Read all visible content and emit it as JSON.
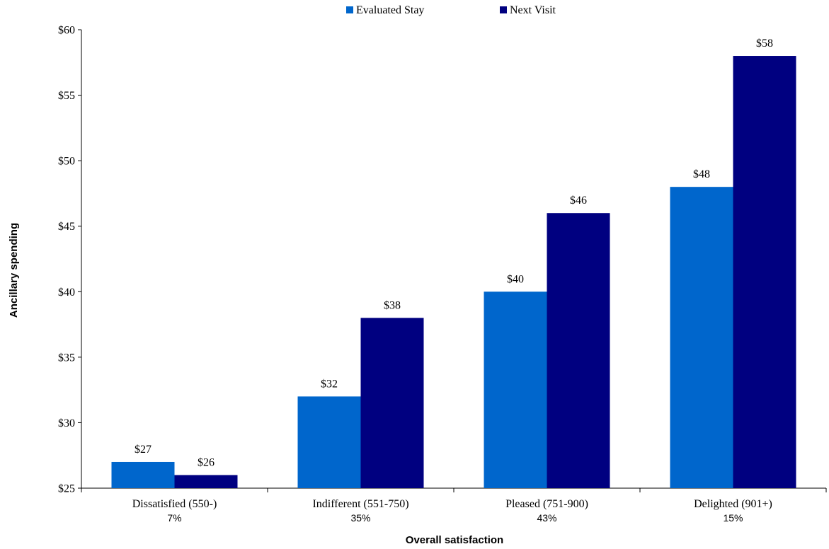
{
  "colors": {
    "evaluated_stay": "#0066CC",
    "next_visit": "#000080",
    "axis": "#000000"
  },
  "legend": {
    "position": "top-center",
    "items": [
      {
        "label": "Evaluated Stay",
        "color": "#0066CC"
      },
      {
        "label": "Next Visit",
        "color": "#000080"
      }
    ]
  },
  "chart_data": {
    "type": "bar",
    "title": "",
    "xlabel": "Overall satisfaction",
    "ylabel": "Ancillary spending",
    "ylim": [
      25,
      60
    ],
    "yticks": [
      25,
      30,
      35,
      40,
      45,
      50,
      55,
      60
    ],
    "ytick_labels": [
      "$25",
      "$30",
      "$35",
      "$40",
      "$45",
      "$50",
      "$55",
      "$60"
    ],
    "grid": false,
    "categories": [
      "Dissatisfied (550-)",
      "Indifferent (551-750)",
      "Pleased (751-900)",
      "Delighted (901+)"
    ],
    "category_shares": [
      "7%",
      "35%",
      "43%",
      "15%"
    ],
    "series": [
      {
        "name": "Evaluated Stay",
        "values": [
          27,
          32,
          40,
          48
        ],
        "labels": [
          "$27",
          "$32",
          "$40",
          "$48"
        ]
      },
      {
        "name": "Next Visit",
        "values": [
          26,
          38,
          46,
          58
        ],
        "labels": [
          "$26",
          "$38",
          "$46",
          "$58"
        ]
      }
    ]
  }
}
